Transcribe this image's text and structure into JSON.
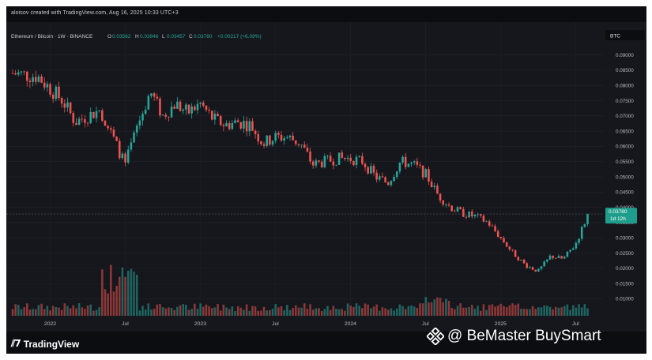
{
  "header": {
    "caption": "aloisov created with TradingView.com, Aug 16, 2025 10:33 UTC+3"
  },
  "legend": {
    "symbol": "Ethereum / Bitcoin · 1W · BINANCE",
    "o_label": "O",
    "o_value": "0.03562",
    "h_label": "H",
    "h_value": "0.03946",
    "l_label": "L",
    "l_value": "0.03457",
    "c_label": "C",
    "c_value": "0.03780",
    "change": "+0.00217 (+6.08%)"
  },
  "currency_badge": "BTC",
  "price_tag": {
    "value": "0.03780",
    "countdown": "1d 12h"
  },
  "brand": {
    "name": "TradingView"
  },
  "watermark": {
    "text": "@ BeMaster BuySmart"
  },
  "colors": {
    "background": "#16171c",
    "up": "#26a69a",
    "down": "#ef5350",
    "price_tag": "#1f9d8c"
  },
  "chart_data": {
    "type": "candlestick",
    "title": "Ethereum / Bitcoin · 1W · BINANCE",
    "grid": true,
    "y_axis": {
      "position": "right",
      "ylim": [
        0.007,
        0.093
      ],
      "ticks": [
        0.09,
        0.085,
        0.08,
        0.075,
        0.07,
        0.065,
        0.06,
        0.055,
        0.05,
        0.045,
        0.04,
        0.035,
        0.03,
        0.025,
        0.02,
        0.015,
        0.01
      ],
      "tick_labels": [
        "0.09000",
        "0.08500",
        "0.08000",
        "0.07500",
        "0.07000",
        "0.06500",
        "0.06000",
        "0.05500",
        "0.05000",
        "0.04500",
        "0.04000",
        "0.03500",
        "0.03000",
        "0.02500",
        "0.02000",
        "0.01500",
        "0.01000"
      ]
    },
    "x_axis": {
      "tick_labels": [
        "2022",
        "Jul",
        "2023",
        "Jul",
        "2024",
        "Jul",
        "2025",
        "Jul"
      ],
      "tick_dates": [
        "2022-01",
        "2022-07",
        "2023-01",
        "2023-07",
        "2024-01",
        "2024-07",
        "2025-01",
        "2025-07"
      ],
      "range": [
        "2021-10",
        "2025-09"
      ]
    },
    "close_path": [
      [
        "2021-10",
        0.084
      ],
      [
        "2021-12",
        0.083
      ],
      [
        "2022-02",
        0.075
      ],
      [
        "2022-03",
        0.068
      ],
      [
        "2022-05",
        0.072
      ],
      [
        "2022-06",
        0.063
      ],
      [
        "2022-07",
        0.054
      ],
      [
        "2022-08",
        0.067
      ],
      [
        "2022-09",
        0.078
      ],
      [
        "2022-10",
        0.07
      ],
      [
        "2022-11",
        0.074
      ],
      [
        "2022-12",
        0.071
      ],
      [
        "2023-01",
        0.074
      ],
      [
        "2023-02",
        0.069
      ],
      [
        "2023-03",
        0.067
      ],
      [
        "2023-04",
        0.068
      ],
      [
        "2023-05",
        0.067
      ],
      [
        "2023-06",
        0.061
      ],
      [
        "2023-07",
        0.063
      ],
      [
        "2023-08",
        0.063
      ],
      [
        "2023-09",
        0.061
      ],
      [
        "2023-10",
        0.054
      ],
      [
        "2023-11",
        0.055
      ],
      [
        "2023-12",
        0.056
      ],
      [
        "2024-01",
        0.056
      ],
      [
        "2024-02",
        0.055
      ],
      [
        "2024-03",
        0.05
      ],
      [
        "2024-04",
        0.048
      ],
      [
        "2024-05",
        0.055
      ],
      [
        "2024-06",
        0.054
      ],
      [
        "2024-07",
        0.051
      ],
      [
        "2024-08",
        0.044
      ],
      [
        "2024-09",
        0.04
      ],
      [
        "2024-10",
        0.038
      ],
      [
        "2024-11",
        0.037
      ],
      [
        "2024-12",
        0.035
      ],
      [
        "2025-01",
        0.03
      ],
      [
        "2025-02",
        0.025
      ],
      [
        "2025-03",
        0.021
      ],
      [
        "2025-04",
        0.019
      ],
      [
        "2025-05",
        0.024
      ],
      [
        "2025-06",
        0.023
      ],
      [
        "2025-07",
        0.028
      ],
      [
        "2025-08",
        0.0378
      ]
    ],
    "last_close": 0.0378,
    "volume": "present (bottom pane)"
  }
}
